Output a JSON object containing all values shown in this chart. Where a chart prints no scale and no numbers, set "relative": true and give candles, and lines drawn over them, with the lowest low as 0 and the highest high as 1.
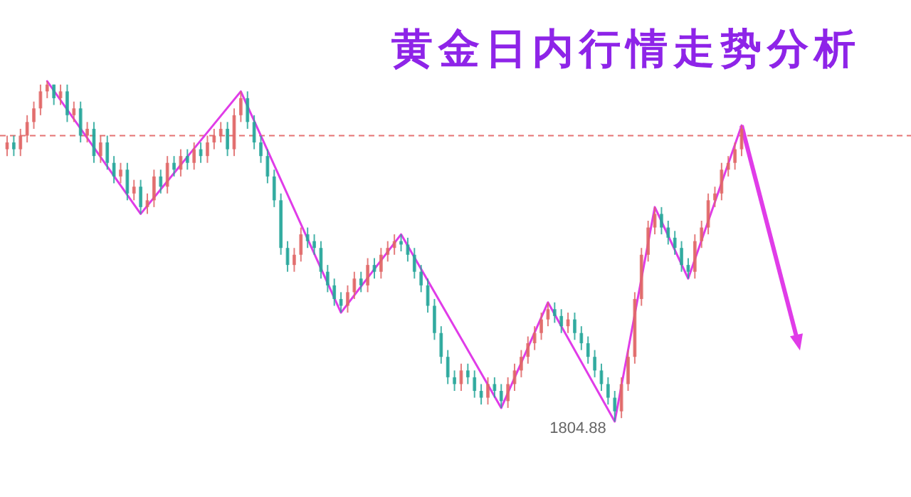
{
  "chart_data": {
    "type": "candlestick",
    "title": "黄金日内行情走势分析",
    "relative": true,
    "tick_labels": false,
    "categories": [
      null,
      null,
      null,
      null,
      null,
      null,
      null,
      null,
      null,
      null,
      null,
      null,
      null,
      null,
      null,
      null,
      null,
      null,
      null,
      null,
      null,
      null,
      null,
      null,
      null,
      null,
      null,
      null,
      null,
      null,
      null,
      null,
      null,
      null,
      null,
      null,
      null,
      null,
      null,
      null,
      null,
      null,
      null,
      null,
      null,
      null,
      null,
      null,
      null,
      null,
      null,
      null,
      null,
      null,
      null,
      null,
      null,
      null,
      null,
      null,
      null,
      null,
      null,
      null,
      null,
      null,
      null,
      null,
      null,
      null,
      null,
      null,
      null,
      null,
      null,
      null,
      null,
      null,
      null,
      null,
      null,
      null,
      null,
      null,
      null,
      null,
      null,
      null,
      null,
      null,
      null,
      null,
      null,
      null,
      null,
      null,
      null,
      null,
      null,
      null,
      null,
      null,
      null,
      null,
      null,
      null,
      null,
      null,
      null,
      null,
      null
    ],
    "ohlc": [
      [
        0.8,
        0.84,
        0.78,
        0.82
      ],
      [
        0.82,
        0.84,
        0.78,
        0.8
      ],
      [
        0.8,
        0.86,
        0.78,
        0.84
      ],
      [
        0.84,
        0.9,
        0.82,
        0.88
      ],
      [
        0.88,
        0.94,
        0.86,
        0.92
      ],
      [
        0.92,
        0.99,
        0.9,
        0.97
      ],
      [
        0.97,
        1,
        0.95,
        0.99
      ],
      [
        0.99,
        0.99,
        0.93,
        0.95
      ],
      [
        0.95,
        0.99,
        0.93,
        0.97
      ],
      [
        0.97,
        0.99,
        0.88,
        0.9
      ],
      [
        0.9,
        0.94,
        0.88,
        0.92
      ],
      [
        0.92,
        0.94,
        0.82,
        0.84
      ],
      [
        0.84,
        0.88,
        0.82,
        0.86
      ],
      [
        0.86,
        0.88,
        0.76,
        0.78
      ],
      [
        0.78,
        0.84,
        0.76,
        0.82
      ],
      [
        0.82,
        0.84,
        0.74,
        0.76
      ],
      [
        0.76,
        0.78,
        0.7,
        0.72
      ],
      [
        0.72,
        0.76,
        0.7,
        0.74
      ],
      [
        0.74,
        0.76,
        0.65,
        0.67
      ],
      [
        0.67,
        0.71,
        0.65,
        0.69
      ],
      [
        0.69,
        0.71,
        0.61,
        0.63
      ],
      [
        0.63,
        0.67,
        0.61,
        0.65
      ],
      [
        0.65,
        0.74,
        0.63,
        0.72
      ],
      [
        0.72,
        0.74,
        0.67,
        0.69
      ],
      [
        0.69,
        0.78,
        0.67,
        0.76
      ],
      [
        0.76,
        0.78,
        0.72,
        0.74
      ],
      [
        0.74,
        0.8,
        0.72,
        0.78
      ],
      [
        0.78,
        0.8,
        0.74,
        0.76
      ],
      [
        0.76,
        0.82,
        0.74,
        0.8
      ],
      [
        0.8,
        0.82,
        0.76,
        0.78
      ],
      [
        0.78,
        0.84,
        0.76,
        0.82
      ],
      [
        0.82,
        0.86,
        0.8,
        0.84
      ],
      [
        0.84,
        0.88,
        0.82,
        0.86
      ],
      [
        0.86,
        0.88,
        0.78,
        0.8
      ],
      [
        0.8,
        0.92,
        0.78,
        0.9
      ],
      [
        0.9,
        0.97,
        0.88,
        0.95
      ],
      [
        0.95,
        0.97,
        0.86,
        0.88
      ],
      [
        0.88,
        0.9,
        0.8,
        0.82
      ],
      [
        0.82,
        0.84,
        0.76,
        0.78
      ],
      [
        0.78,
        0.8,
        0.7,
        0.72
      ],
      [
        0.72,
        0.74,
        0.63,
        0.65
      ],
      [
        0.65,
        0.67,
        0.49,
        0.51
      ],
      [
        0.51,
        0.53,
        0.44,
        0.46
      ],
      [
        0.46,
        0.51,
        0.44,
        0.49
      ],
      [
        0.49,
        0.57,
        0.47,
        0.55
      ],
      [
        0.55,
        0.57,
        0.51,
        0.53
      ],
      [
        0.53,
        0.55,
        0.49,
        0.51
      ],
      [
        0.51,
        0.53,
        0.42,
        0.44
      ],
      [
        0.44,
        0.46,
        0.38,
        0.4
      ],
      [
        0.4,
        0.42,
        0.34,
        0.36
      ],
      [
        0.36,
        0.38,
        0.32,
        0.34
      ],
      [
        0.34,
        0.4,
        0.32,
        0.38
      ],
      [
        0.38,
        0.44,
        0.36,
        0.42
      ],
      [
        0.42,
        0.44,
        0.38,
        0.4
      ],
      [
        0.4,
        0.48,
        0.38,
        0.46
      ],
      [
        0.46,
        0.48,
        0.42,
        0.44
      ],
      [
        0.44,
        0.51,
        0.42,
        0.49
      ],
      [
        0.49,
        0.53,
        0.47,
        0.51
      ],
      [
        0.51,
        0.55,
        0.49,
        0.53
      ],
      [
        0.53,
        0.55,
        0.5,
        0.52
      ],
      [
        0.52,
        0.54,
        0.47,
        0.49
      ],
      [
        0.49,
        0.51,
        0.42,
        0.44
      ],
      [
        0.44,
        0.46,
        0.38,
        0.4
      ],
      [
        0.4,
        0.42,
        0.32,
        0.34
      ],
      [
        0.34,
        0.36,
        0.24,
        0.26
      ],
      [
        0.26,
        0.28,
        0.17,
        0.19
      ],
      [
        0.19,
        0.21,
        0.11,
        0.13
      ],
      [
        0.13,
        0.15,
        0.09,
        0.11
      ],
      [
        0.11,
        0.17,
        0.09,
        0.15
      ],
      [
        0.15,
        0.17,
        0.11,
        0.13
      ],
      [
        0.13,
        0.15,
        0.07,
        0.09
      ],
      [
        0.09,
        0.11,
        0.05,
        0.07
      ],
      [
        0.07,
        0.13,
        0.05,
        0.11
      ],
      [
        0.11,
        0.13,
        0.07,
        0.09
      ],
      [
        0.09,
        0.11,
        0.04,
        0.06
      ],
      [
        0.06,
        0.13,
        0.04,
        0.11
      ],
      [
        0.11,
        0.17,
        0.09,
        0.15
      ],
      [
        0.15,
        0.21,
        0.13,
        0.19
      ],
      [
        0.19,
        0.25,
        0.17,
        0.23
      ],
      [
        0.23,
        0.28,
        0.21,
        0.26
      ],
      [
        0.26,
        0.32,
        0.24,
        0.3
      ],
      [
        0.3,
        0.35,
        0.28,
        0.33
      ],
      [
        0.33,
        0.35,
        0.29,
        0.31
      ],
      [
        0.31,
        0.33,
        0.26,
        0.28
      ],
      [
        0.28,
        0.32,
        0.26,
        0.3
      ],
      [
        0.3,
        0.32,
        0.24,
        0.26
      ],
      [
        0.26,
        0.28,
        0.21,
        0.23
      ],
      [
        0.23,
        0.25,
        0.17,
        0.19
      ],
      [
        0.19,
        0.21,
        0.13,
        0.15
      ],
      [
        0.15,
        0.17,
        0.09,
        0.11
      ],
      [
        0.11,
        0.13,
        0.05,
        0.07
      ],
      [
        0.07,
        0.09,
        0,
        0.03
      ],
      [
        0.03,
        0.13,
        0.01,
        0.11
      ],
      [
        0.11,
        0.21,
        0.09,
        0.19
      ],
      [
        0.19,
        0.38,
        0.17,
        0.36
      ],
      [
        0.36,
        0.51,
        0.34,
        0.49
      ],
      [
        0.49,
        0.59,
        0.47,
        0.57
      ],
      [
        0.57,
        0.63,
        0.55,
        0.61
      ],
      [
        0.61,
        0.63,
        0.55,
        0.57
      ],
      [
        0.57,
        0.59,
        0.52,
        0.54
      ],
      [
        0.54,
        0.56,
        0.49,
        0.51
      ],
      [
        0.51,
        0.53,
        0.44,
        0.46
      ],
      [
        0.46,
        0.48,
        0.42,
        0.44
      ],
      [
        0.44,
        0.55,
        0.42,
        0.53
      ],
      [
        0.53,
        0.59,
        0.51,
        0.57
      ],
      [
        0.57,
        0.67,
        0.55,
        0.65
      ],
      [
        0.65,
        0.69,
        0.63,
        0.67
      ],
      [
        0.67,
        0.76,
        0.65,
        0.74
      ],
      [
        0.74,
        0.78,
        0.72,
        0.76
      ],
      [
        0.76,
        0.82,
        0.74,
        0.8
      ],
      [
        0.8,
        0.87,
        0.78,
        0.86
      ]
    ],
    "series": [
      {
        "type": "line",
        "color": "#e03ce8",
        "values": [
          null,
          null,
          null,
          null,
          null,
          null,
          1,
          null,
          null,
          null,
          null,
          null,
          null,
          null,
          null,
          null,
          null,
          null,
          null,
          null,
          0.61,
          null,
          null,
          null,
          null,
          null,
          null,
          null,
          null,
          null,
          null,
          null,
          null,
          null,
          null,
          0.97,
          null,
          null,
          null,
          null,
          null,
          null,
          null,
          null,
          null,
          null,
          null,
          null,
          null,
          null,
          0.32,
          null,
          null,
          null,
          null,
          null,
          null,
          null,
          null,
          0.55,
          null,
          null,
          null,
          null,
          null,
          null,
          null,
          null,
          null,
          null,
          null,
          null,
          null,
          null,
          0.04,
          null,
          null,
          null,
          null,
          null,
          null,
          0.35,
          null,
          null,
          null,
          null,
          null,
          null,
          null,
          null,
          null,
          0,
          null,
          null,
          null,
          null,
          null,
          0.63,
          null,
          null,
          null,
          null,
          0.42,
          null,
          null,
          null,
          null,
          null,
          null,
          null,
          0.87
        ]
      }
    ],
    "ref_lines": [
      {
        "axis": "y",
        "value": 0.84,
        "color": "#e57373",
        "line_style": "dashed"
      }
    ],
    "annotations": [
      "1804.88"
    ]
  }
}
